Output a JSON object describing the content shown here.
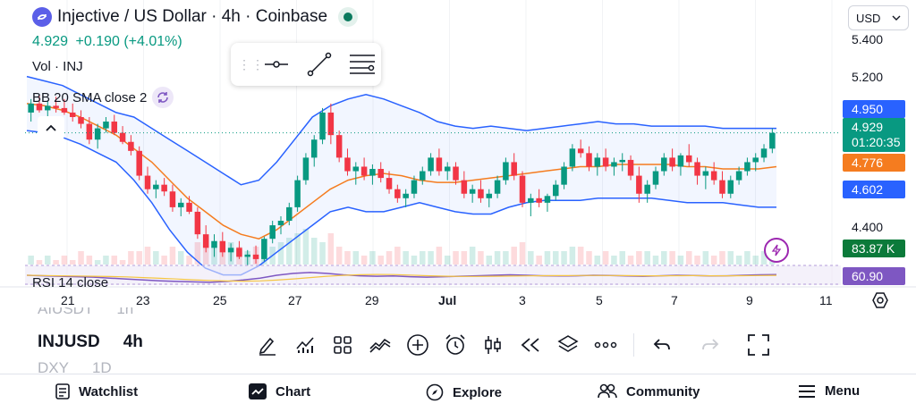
{
  "header": {
    "symbol_title": "Injective / US Dollar · 4h · Coinbase",
    "price": "4.929",
    "change": "+0.190 (+4.01%)",
    "volume_label": "Vol · INJ",
    "bb_label": "BB 20 SMA close 2",
    "rsi_label": "RSI 14 close"
  },
  "currency": {
    "selected": "USD"
  },
  "price_axis": {
    "labels": [
      "5.400",
      "5.200",
      "4.400"
    ],
    "tags": {
      "bb_upper": "4.950",
      "last_price": "4.929",
      "countdown": "01:20:35",
      "bb_basis": "4.776",
      "bb_lower": "4.602",
      "volume": "83.87 K",
      "rsi": "60.90"
    }
  },
  "time_axis": {
    "labels": [
      "21",
      "23",
      "25",
      "27",
      "29",
      "Jul",
      "3",
      "5",
      "7",
      "9",
      "11"
    ]
  },
  "symbols": [
    {
      "ticker": "AIUSDT",
      "interval": "1h"
    },
    {
      "ticker": "INJUSD",
      "interval": "4h"
    },
    {
      "ticker": "DXY",
      "interval": "1D"
    }
  ],
  "bottom_nav": {
    "watchlist": "Watchlist",
    "chart": "Chart",
    "explore": "Explore",
    "community": "Community",
    "menu": "Menu"
  },
  "colors": {
    "up": "#089981",
    "down": "#f23645",
    "bb_band": "#2962ff",
    "bb_basis": "#f57c1f",
    "rsi": "#7e57c2"
  },
  "chart_data": {
    "type": "candlestick",
    "title": "Injective / US Dollar · 4h · Coinbase",
    "ylim": [
      4.33,
      5.44
    ],
    "x_labels": [
      "21",
      "23",
      "25",
      "27",
      "29",
      "Jul",
      "3",
      "5",
      "7",
      "9",
      "11"
    ],
    "candles": [
      [
        5.02,
        5.08,
        4.98,
        5.06
      ],
      [
        5.06,
        5.1,
        5.02,
        5.03
      ],
      [
        5.03,
        5.07,
        4.99,
        5.05
      ],
      [
        5.05,
        5.09,
        5.02,
        5.04
      ],
      [
        5.04,
        5.08,
        5.01,
        5.02
      ],
      [
        5.02,
        5.06,
        4.98,
        5.0
      ],
      [
        5.0,
        5.03,
        4.95,
        4.97
      ],
      [
        4.97,
        5.0,
        4.88,
        4.9
      ],
      [
        4.9,
        4.97,
        4.86,
        4.95
      ],
      [
        4.95,
        5.0,
        4.93,
        4.98
      ],
      [
        4.98,
        5.01,
        4.92,
        4.93
      ],
      [
        4.93,
        4.96,
        4.88,
        4.89
      ],
      [
        4.89,
        4.92,
        4.83,
        4.85
      ],
      [
        4.85,
        4.87,
        4.72,
        4.74
      ],
      [
        4.74,
        4.78,
        4.66,
        4.68
      ],
      [
        4.68,
        4.72,
        4.64,
        4.7
      ],
      [
        4.7,
        4.73,
        4.65,
        4.67
      ],
      [
        4.67,
        4.7,
        4.58,
        4.6
      ],
      [
        4.6,
        4.64,
        4.56,
        4.62
      ],
      [
        4.62,
        4.65,
        4.57,
        4.58
      ],
      [
        4.58,
        4.6,
        4.46,
        4.48
      ],
      [
        4.48,
        4.52,
        4.4,
        4.42
      ],
      [
        4.42,
        4.48,
        4.38,
        4.45
      ],
      [
        4.45,
        4.49,
        4.38,
        4.4
      ],
      [
        4.4,
        4.44,
        4.36,
        4.42
      ],
      [
        4.42,
        4.45,
        4.37,
        4.38
      ],
      [
        4.38,
        4.41,
        4.34,
        4.39
      ],
      [
        4.39,
        4.43,
        4.35,
        4.37
      ],
      [
        4.37,
        4.47,
        4.36,
        4.46
      ],
      [
        4.46,
        4.54,
        4.44,
        4.52
      ],
      [
        4.52,
        4.56,
        4.48,
        4.54
      ],
      [
        4.54,
        4.62,
        4.52,
        4.6
      ],
      [
        4.6,
        4.74,
        4.58,
        4.72
      ],
      [
        4.72,
        4.84,
        4.7,
        4.82
      ],
      [
        4.82,
        4.92,
        4.78,
        4.9
      ],
      [
        4.9,
        5.04,
        4.88,
        5.02
      ],
      [
        5.02,
        5.06,
        4.88,
        4.92
      ],
      [
        4.92,
        4.94,
        4.8,
        4.82
      ],
      [
        4.82,
        4.86,
        4.74,
        4.76
      ],
      [
        4.76,
        4.8,
        4.7,
        4.78
      ],
      [
        4.78,
        4.82,
        4.72,
        4.74
      ],
      [
        4.74,
        4.79,
        4.7,
        4.77
      ],
      [
        4.77,
        4.8,
        4.71,
        4.73
      ],
      [
        4.73,
        4.76,
        4.66,
        4.68
      ],
      [
        4.68,
        4.7,
        4.62,
        4.64
      ],
      [
        4.64,
        4.68,
        4.6,
        4.66
      ],
      [
        4.66,
        4.74,
        4.64,
        4.72
      ],
      [
        4.72,
        4.78,
        4.7,
        4.76
      ],
      [
        4.76,
        4.84,
        4.74,
        4.82
      ],
      [
        4.82,
        4.86,
        4.74,
        4.76
      ],
      [
        4.76,
        4.8,
        4.72,
        4.78
      ],
      [
        4.78,
        4.8,
        4.7,
        4.72
      ],
      [
        4.72,
        4.76,
        4.64,
        4.66
      ],
      [
        4.66,
        4.7,
        4.62,
        4.68
      ],
      [
        4.68,
        4.72,
        4.62,
        4.64
      ],
      [
        4.64,
        4.68,
        4.6,
        4.66
      ],
      [
        4.66,
        4.74,
        4.64,
        4.72
      ],
      [
        4.72,
        4.82,
        4.7,
        4.8
      ],
      [
        4.8,
        4.84,
        4.72,
        4.74
      ],
      [
        4.74,
        4.76,
        4.6,
        4.62
      ],
      [
        4.62,
        4.66,
        4.56,
        4.64
      ],
      [
        4.64,
        4.68,
        4.6,
        4.62
      ],
      [
        4.62,
        4.66,
        4.58,
        4.65
      ],
      [
        4.65,
        4.72,
        4.63,
        4.7
      ],
      [
        4.7,
        4.8,
        4.68,
        4.78
      ],
      [
        4.78,
        4.88,
        4.76,
        4.86
      ],
      [
        4.86,
        4.9,
        4.82,
        4.84
      ],
      [
        4.84,
        4.87,
        4.76,
        4.78
      ],
      [
        4.78,
        4.84,
        4.74,
        4.82
      ],
      [
        4.82,
        4.86,
        4.76,
        4.78
      ],
      [
        4.78,
        4.82,
        4.74,
        4.8
      ],
      [
        4.8,
        4.84,
        4.76,
        4.81
      ],
      [
        4.81,
        4.83,
        4.72,
        4.74
      ],
      [
        4.74,
        4.78,
        4.62,
        4.66
      ],
      [
        4.66,
        4.72,
        4.62,
        4.7
      ],
      [
        4.7,
        4.78,
        4.68,
        4.76
      ],
      [
        4.76,
        4.84,
        4.74,
        4.82
      ],
      [
        4.82,
        4.86,
        4.76,
        4.78
      ],
      [
        4.78,
        4.84,
        4.74,
        4.83
      ],
      [
        4.83,
        4.88,
        4.78,
        4.8
      ],
      [
        4.8,
        4.82,
        4.7,
        4.74
      ],
      [
        4.74,
        4.78,
        4.68,
        4.76
      ],
      [
        4.76,
        4.8,
        4.7,
        4.72
      ],
      [
        4.72,
        4.76,
        4.64,
        4.66
      ],
      [
        4.66,
        4.74,
        4.64,
        4.72
      ],
      [
        4.72,
        4.78,
        4.7,
        4.76
      ],
      [
        4.76,
        4.82,
        4.74,
        4.8
      ],
      [
        4.8,
        4.84,
        4.76,
        4.82
      ],
      [
        4.82,
        4.88,
        4.8,
        4.86
      ],
      [
        4.86,
        4.95,
        4.84,
        4.93
      ]
    ],
    "bb_upper": [
      5.18,
      5.16,
      5.14,
      5.1,
      5.06,
      5.02,
      5.0,
      4.95,
      4.9,
      4.85,
      4.8,
      4.75,
      4.7,
      4.72,
      4.8,
      4.9,
      5.0,
      5.05,
      5.08,
      5.1,
      5.08,
      5.05,
      5.02,
      4.98,
      4.96,
      4.95,
      4.96,
      4.95,
      4.94,
      4.95,
      4.96,
      4.97,
      4.98,
      4.97,
      4.97,
      4.96,
      4.96,
      4.96,
      4.96,
      4.95,
      4.95,
      4.95,
      4.95
    ],
    "bb_basis": [
      5.06,
      5.05,
      5.03,
      5.0,
      4.96,
      4.92,
      4.86,
      4.8,
      4.72,
      4.64,
      4.58,
      4.52,
      4.48,
      4.46,
      4.5,
      4.56,
      4.62,
      4.68,
      4.72,
      4.74,
      4.75,
      4.74,
      4.72,
      4.71,
      4.71,
      4.72,
      4.73,
      4.74,
      4.75,
      4.76,
      4.77,
      4.78,
      4.78,
      4.79,
      4.79,
      4.79,
      4.79,
      4.78,
      4.78,
      4.77,
      4.77,
      4.77,
      4.78
    ],
    "bb_lower": [
      4.94,
      4.93,
      4.91,
      4.88,
      4.84,
      4.8,
      4.72,
      4.62,
      4.5,
      4.4,
      4.33,
      4.3,
      4.3,
      4.34,
      4.4,
      4.46,
      4.52,
      4.58,
      4.6,
      4.58,
      4.58,
      4.6,
      4.62,
      4.6,
      4.58,
      4.57,
      4.57,
      4.6,
      4.62,
      4.63,
      4.63,
      4.63,
      4.64,
      4.64,
      4.64,
      4.64,
      4.63,
      4.62,
      4.62,
      4.62,
      4.61,
      4.6,
      4.6
    ],
    "volume": [
      2,
      1,
      2,
      1,
      2,
      1,
      3,
      2,
      1,
      2,
      2,
      1,
      3,
      3,
      4,
      3,
      2,
      4,
      3,
      2,
      5,
      6,
      4,
      3,
      5,
      4,
      3,
      4,
      3,
      4,
      5,
      6,
      7,
      8,
      6,
      5,
      7,
      4,
      3,
      3,
      2,
      3,
      2,
      3,
      4,
      3,
      2,
      3,
      3,
      4,
      2,
      3,
      3,
      4,
      3,
      2,
      3,
      3,
      4,
      5,
      3,
      2,
      3,
      3,
      3,
      4,
      4,
      3,
      2,
      3,
      2,
      3,
      2,
      3,
      3,
      2,
      3,
      3,
      2,
      3,
      2,
      3,
      2,
      3,
      3,
      2,
      3,
      2,
      3,
      3
    ],
    "rsi": [
      58,
      56,
      54,
      52,
      50,
      46,
      42,
      38,
      34,
      32,
      30,
      28,
      32,
      38,
      46,
      58,
      66,
      70,
      66,
      60,
      56,
      54,
      55,
      52,
      50,
      52,
      54,
      56,
      58,
      60,
      58,
      56,
      55,
      56,
      58,
      57,
      55,
      54,
      56,
      58,
      57,
      55,
      56,
      58,
      60,
      61
    ]
  }
}
